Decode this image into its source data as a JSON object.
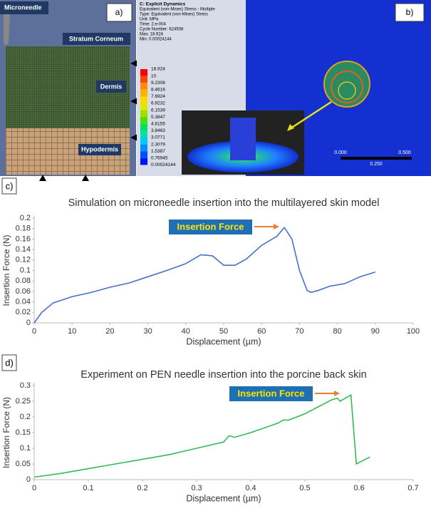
{
  "panel_a": {
    "label": "a)",
    "layers": [
      "Microneedle",
      "Stratum Corneum",
      "Dermis",
      "Hypodermis"
    ]
  },
  "legend": {
    "lines": [
      "C: Explicit Dynamics",
      "Equivalent (von-Mises) Stress - Multiple",
      "Type: Equivalent (von-Mises) Stress",
      "Unit: MPa",
      "Time: 2.e-004",
      "Cycle Number: 624508",
      "Max: 18.924",
      "Min: 0.00024144"
    ],
    "scale": [
      18.924,
      10,
      9.2308,
      8.4616,
      7.6924,
      6.9232,
      6.1539,
      5.3847,
      4.6155,
      3.8463,
      3.0771,
      2.3079,
      1.5387,
      0.76945,
      0.00024144
    ]
  },
  "panel_b": {
    "label": "b)",
    "scale_labels": [
      "0.000",
      "0.500",
      "0.250"
    ]
  },
  "chart_data": [
    {
      "type": "line",
      "panel_label": "c)",
      "title": "Simulation on microneedle insertion into the multilayered skin model",
      "x_label": "Displacement (µm)",
      "y_label": "Insertion Force (N)",
      "annotation": "Insertion Force",
      "x": [
        0,
        2,
        5,
        10,
        15,
        20,
        25,
        30,
        35,
        40,
        44,
        47,
        50,
        53,
        56,
        60,
        64,
        66,
        68,
        70,
        72,
        73,
        75,
        78,
        82,
        86,
        90
      ],
      "series": [
        {
          "color": "#4472c4",
          "values": [
            0,
            0.02,
            0.038,
            0.05,
            0.058,
            0.068,
            0.076,
            0.088,
            0.1,
            0.113,
            0.13,
            0.128,
            0.11,
            0.11,
            0.122,
            0.148,
            0.165,
            0.182,
            0.16,
            0.1,
            0.062,
            0.058,
            0.062,
            0.07,
            0.075,
            0.088,
            0.097
          ]
        }
      ],
      "xlim": [
        0,
        100
      ],
      "ylim": [
        0,
        0.2
      ],
      "xticks": [
        0,
        10,
        20,
        30,
        40,
        50,
        60,
        70,
        80,
        90,
        100
      ],
      "yticks": [
        0,
        0.02,
        0.04,
        0.06,
        0.08,
        0.1,
        0.12,
        0.14,
        0.16,
        0.18,
        0.2
      ]
    },
    {
      "type": "line",
      "panel_label": "d)",
      "title": "Experiment on PEN needle insertion into the porcine back skin",
      "x_label": "Displacement (µm)",
      "y_label": "Insertion Force (N)",
      "annotation": "Insertion Force",
      "x": [
        0,
        0.05,
        0.1,
        0.15,
        0.2,
        0.25,
        0.3,
        0.35,
        0.36,
        0.37,
        0.4,
        0.45,
        0.46,
        0.47,
        0.5,
        0.55,
        0.56,
        0.565,
        0.585,
        0.595,
        0.62
      ],
      "series": [
        {
          "color": "#33bb55",
          "values": [
            0.008,
            0.02,
            0.035,
            0.05,
            0.065,
            0.08,
            0.1,
            0.12,
            0.14,
            0.135,
            0.15,
            0.18,
            0.19,
            0.19,
            0.21,
            0.255,
            0.26,
            0.25,
            0.27,
            0.05,
            0.072
          ]
        }
      ],
      "xlim": [
        0,
        0.7
      ],
      "ylim": [
        0,
        0.3
      ],
      "xticks": [
        0,
        0.1,
        0.2,
        0.3,
        0.4,
        0.5,
        0.6,
        0.7
      ],
      "yticks": [
        0,
        0.05,
        0.1,
        0.15,
        0.2,
        0.25,
        0.3
      ]
    }
  ]
}
